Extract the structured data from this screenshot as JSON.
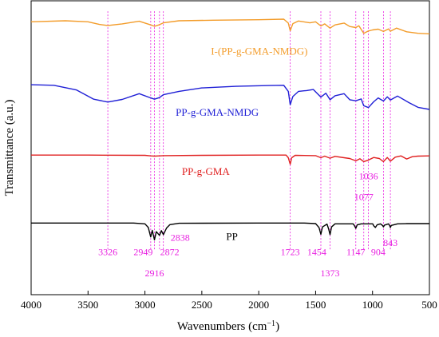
{
  "chart_data": {
    "type": "line",
    "xlabel": "Wavenumbers (cm",
    "xlabel_superscript": "−1",
    "xlabel_suffix": ")",
    "ylabel": "Transmittance (a.u.)",
    "x_reversed": true,
    "xlim": [
      4000,
      500
    ],
    "x_ticks": [
      4000,
      3500,
      3000,
      2500,
      2000,
      1500,
      1000,
      500
    ],
    "y_ticks_shown": false,
    "grid": false,
    "series": [
      {
        "name": "I-(PP-g-GMA-NMDG)",
        "color": "#f39c2a",
        "baseline": 88,
        "points": [
          [
            4000,
            92.0
          ],
          [
            3700,
            92.4
          ],
          [
            3500,
            92.0
          ],
          [
            3400,
            91.0
          ],
          [
            3326,
            90.6
          ],
          [
            3200,
            91.2
          ],
          [
            3050,
            92.2
          ],
          [
            2949,
            90.8
          ],
          [
            2916,
            90.3
          ],
          [
            2872,
            90.9
          ],
          [
            2838,
            91.6
          ],
          [
            2700,
            92.4
          ],
          [
            2400,
            92.6
          ],
          [
            2000,
            92.8
          ],
          [
            1780,
            93.0
          ],
          [
            1740,
            91.5
          ],
          [
            1723,
            88.6
          ],
          [
            1700,
            91.3
          ],
          [
            1650,
            92.3
          ],
          [
            1550,
            91.6
          ],
          [
            1500,
            92.0
          ],
          [
            1454,
            90.4
          ],
          [
            1420,
            91.2
          ],
          [
            1373,
            89.6
          ],
          [
            1330,
            90.8
          ],
          [
            1250,
            91.5
          ],
          [
            1200,
            90.2
          ],
          [
            1147,
            89.8
          ],
          [
            1120,
            90.5
          ],
          [
            1077,
            87.6
          ],
          [
            1036,
            88.5
          ],
          [
            1000,
            88.9
          ],
          [
            950,
            89.2
          ],
          [
            904,
            88.3
          ],
          [
            860,
            89.3
          ],
          [
            843,
            88.4
          ],
          [
            790,
            89.6
          ],
          [
            700,
            88.2
          ],
          [
            600,
            87.6
          ],
          [
            500,
            87.4
          ]
        ]
      },
      {
        "name": "PP-g-GMA-NMDG",
        "color": "#1f1fd6",
        "baseline": 62,
        "points": [
          [
            4000,
            68.0
          ],
          [
            3800,
            67.8
          ],
          [
            3600,
            66.0
          ],
          [
            3450,
            62.5
          ],
          [
            3326,
            61.4
          ],
          [
            3200,
            62.4
          ],
          [
            3050,
            64.6
          ],
          [
            2949,
            63.0
          ],
          [
            2916,
            62.5
          ],
          [
            2872,
            63.1
          ],
          [
            2838,
            64.2
          ],
          [
            2700,
            65.5
          ],
          [
            2500,
            66.8
          ],
          [
            2200,
            67.4
          ],
          [
            1900,
            67.7
          ],
          [
            1780,
            67.8
          ],
          [
            1740,
            65.5
          ],
          [
            1723,
            60.4
          ],
          [
            1700,
            63.5
          ],
          [
            1650,
            65.5
          ],
          [
            1580,
            65.8
          ],
          [
            1520,
            66.2
          ],
          [
            1454,
            63.3
          ],
          [
            1410,
            64.8
          ],
          [
            1373,
            62.3
          ],
          [
            1330,
            63.8
          ],
          [
            1250,
            64.6
          ],
          [
            1200,
            62.3
          ],
          [
            1147,
            61.9
          ],
          [
            1100,
            62.6
          ],
          [
            1077,
            60.0
          ],
          [
            1036,
            59.3
          ],
          [
            990,
            61.5
          ],
          [
            950,
            63.0
          ],
          [
            904,
            61.8
          ],
          [
            870,
            63.4
          ],
          [
            843,
            62.2
          ],
          [
            780,
            63.7
          ],
          [
            680,
            61.2
          ],
          [
            600,
            59.4
          ],
          [
            500,
            58.6
          ]
        ]
      },
      {
        "name": "PP-g-GMA",
        "color": "#e02020",
        "baseline": 40,
        "points": [
          [
            4000,
            41.2
          ],
          [
            3500,
            41.2
          ],
          [
            3000,
            41.1
          ],
          [
            2949,
            40.9
          ],
          [
            2916,
            40.8
          ],
          [
            2872,
            40.9
          ],
          [
            2838,
            41.0
          ],
          [
            2500,
            41.1
          ],
          [
            2000,
            41.2
          ],
          [
            1760,
            41.2
          ],
          [
            1740,
            40.2
          ],
          [
            1723,
            37.7
          ],
          [
            1710,
            40.2
          ],
          [
            1680,
            41.1
          ],
          [
            1500,
            41.0
          ],
          [
            1454,
            40.2
          ],
          [
            1420,
            40.8
          ],
          [
            1373,
            40.0
          ],
          [
            1330,
            40.7
          ],
          [
            1250,
            40.2
          ],
          [
            1200,
            39.9
          ],
          [
            1147,
            39.0
          ],
          [
            1110,
            39.8
          ],
          [
            1077,
            38.7
          ],
          [
            1036,
            39.3
          ],
          [
            990,
            40.3
          ],
          [
            940,
            39.9
          ],
          [
            904,
            38.7
          ],
          [
            870,
            40.3
          ],
          [
            843,
            38.9
          ],
          [
            800,
            40.4
          ],
          [
            750,
            40.9
          ],
          [
            700,
            39.7
          ],
          [
            650,
            40.6
          ],
          [
            600,
            40.8
          ],
          [
            500,
            40.9
          ]
        ]
      },
      {
        "name": "PP",
        "color": "#000000",
        "baseline": 15,
        "points": [
          [
            4000,
            15.3
          ],
          [
            3500,
            15.3
          ],
          [
            3100,
            15.3
          ],
          [
            3000,
            15.0
          ],
          [
            2970,
            13.6
          ],
          [
            2949,
            10.0
          ],
          [
            2935,
            12.5
          ],
          [
            2916,
            8.9
          ],
          [
            2900,
            12.0
          ],
          [
            2872,
            10.6
          ],
          [
            2855,
            12.4
          ],
          [
            2838,
            10.9
          ],
          [
            2810,
            13.4
          ],
          [
            2780,
            14.7
          ],
          [
            2700,
            15.2
          ],
          [
            2000,
            15.3
          ],
          [
            1600,
            15.3
          ],
          [
            1500,
            15.1
          ],
          [
            1470,
            13.6
          ],
          [
            1454,
            11.0
          ],
          [
            1440,
            13.8
          ],
          [
            1400,
            14.9
          ],
          [
            1385,
            13.0
          ],
          [
            1373,
            10.9
          ],
          [
            1360,
            13.8
          ],
          [
            1330,
            15.0
          ],
          [
            1170,
            15.0
          ],
          [
            1160,
            14.4
          ],
          [
            1147,
            13.3
          ],
          [
            1135,
            14.6
          ],
          [
            1100,
            15.0
          ],
          [
            998,
            15.0
          ],
          [
            990,
            14.3
          ],
          [
            975,
            13.6
          ],
          [
            960,
            14.6
          ],
          [
            930,
            15.0
          ],
          [
            910,
            14.3
          ],
          [
            904,
            13.8
          ],
          [
            895,
            14.5
          ],
          [
            860,
            15.0
          ],
          [
            850,
            14.4
          ],
          [
            843,
            13.6
          ],
          [
            835,
            14.4
          ],
          [
            808,
            14.7
          ],
          [
            780,
            15.0
          ],
          [
            700,
            15.1
          ],
          [
            500,
            15.1
          ]
        ]
      }
    ],
    "peak_markers": [
      3326,
      2949,
      2916,
      2872,
      2838,
      1723,
      1454,
      1373,
      1147,
      1077,
      1036,
      904,
      843
    ],
    "peak_label_color": "#e81ee0",
    "series_labels": [
      {
        "text": "I-(PP-g-GMA-NMDG)",
        "color": "#f39c2a",
        "x": 1995,
        "y": 79.5
      },
      {
        "text": "PP-g-GMA-NMDG",
        "color": "#1f1fd6",
        "x": 2365,
        "y": 56.2
      },
      {
        "text": "PP-g-GMA",
        "color": "#e02020",
        "x": 2465,
        "y": 33.6
      },
      {
        "text": "PP",
        "color": "#000000",
        "x": 2235,
        "y": 8.9
      }
    ],
    "peak_labels": [
      {
        "text": "3326",
        "x": 3326,
        "y": 3.0
      },
      {
        "text": "2949",
        "x": 3015,
        "y": 3.0
      },
      {
        "text": "2916",
        "x": 2916,
        "y": -5.0
      },
      {
        "text": "2872",
        "x": 2782,
        "y": 3.0
      },
      {
        "text": "2838",
        "x": 2690,
        "y": 8.5
      },
      {
        "text": "1723",
        "x": 1723,
        "y": 3.0
      },
      {
        "text": "1454",
        "x": 1490,
        "y": 3.0
      },
      {
        "text": "1373",
        "x": 1373,
        "y": -5.0
      },
      {
        "text": "1147",
        "x": 1147,
        "y": 3.0
      },
      {
        "text": "904",
        "x": 950,
        "y": 3.0
      },
      {
        "text": "843",
        "x": 843,
        "y": 6.5
      },
      {
        "text": "1036",
        "x": 1036,
        "y": 32.0
      },
      {
        "text": "1077",
        "x": 1077,
        "y": 24.0
      }
    ],
    "ylim": [
      -12,
      100
    ]
  }
}
